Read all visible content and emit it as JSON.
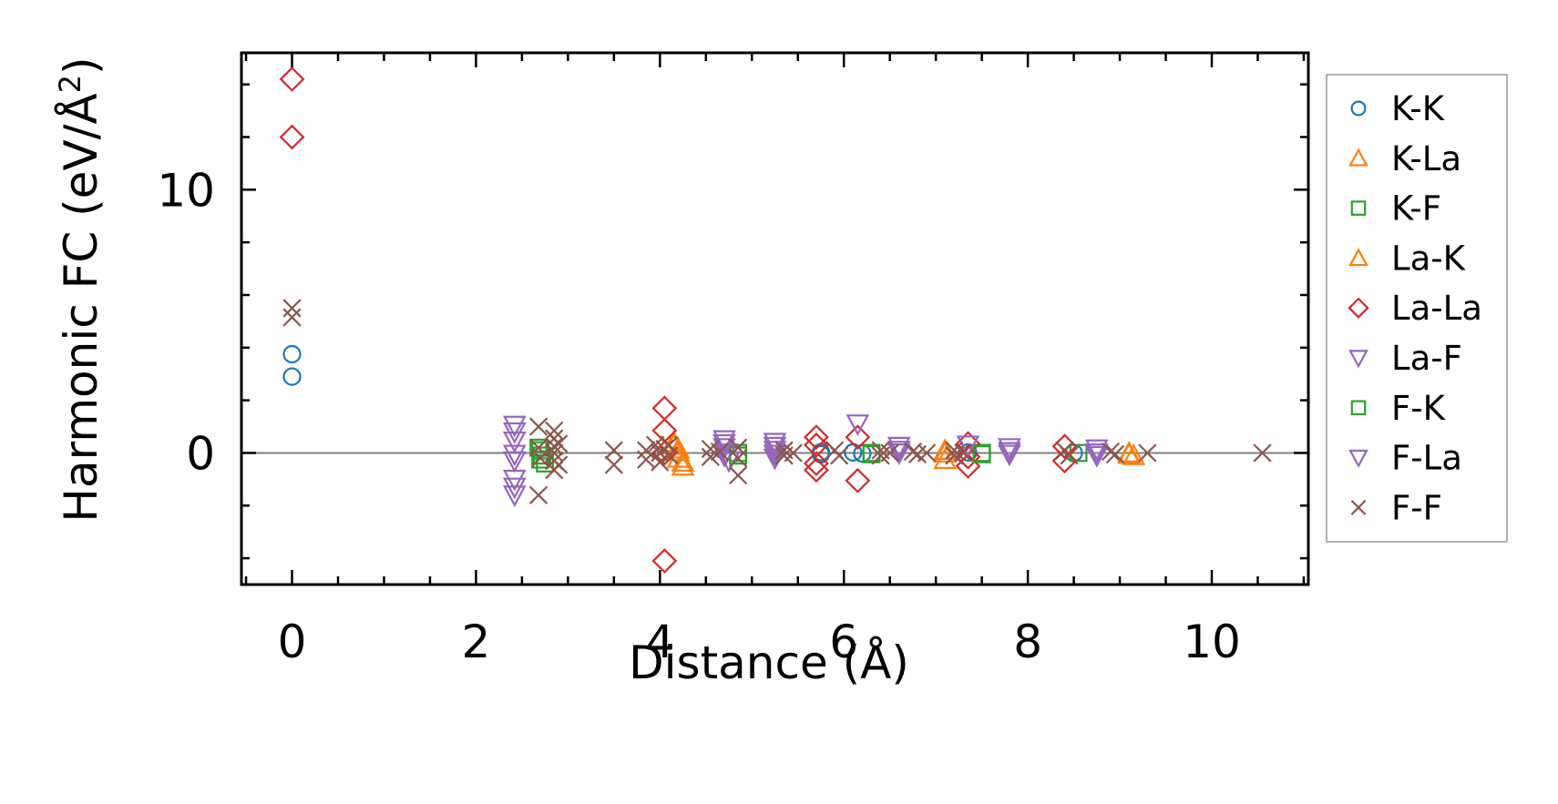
{
  "chart_data": {
    "type": "scatter",
    "xlabel": "Distance (Å)",
    "ylabel_main": "Harmonic FC (eV/Å",
    "ylabel_sup": "2",
    "ylabel_close": ")",
    "xlim": [
      -0.55,
      11.05
    ],
    "ylim": [
      -5.0,
      15.2
    ],
    "xticks": [
      0,
      2,
      4,
      6,
      8,
      10
    ],
    "xtick_labels": [
      "0",
      "2",
      "4",
      "6",
      "8",
      "10"
    ],
    "xminor_step": 0.5,
    "yticks": [
      0,
      10
    ],
    "ytick_labels": [
      "0",
      "10"
    ],
    "yminor_step": 2,
    "zero_line": true,
    "grid": false,
    "legend_position": "outside-right",
    "series": [
      {
        "name": "K-K",
        "marker": "circle",
        "color": "#1f77b4",
        "points": [
          [
            0,
            3.75
          ],
          [
            0,
            2.9
          ],
          [
            5.75,
            0.03
          ],
          [
            5.75,
            -0.05
          ],
          [
            6.1,
            0.02
          ],
          [
            6.2,
            -0.02
          ],
          [
            7.35,
            0.02
          ],
          [
            8.5,
            0.0
          ]
        ]
      },
      {
        "name": "K-La",
        "marker": "triangle-up",
        "color": "#ff7f0e",
        "points": [
          [
            4.15,
            0.4
          ],
          [
            4.2,
            0.15
          ],
          [
            4.2,
            -0.2
          ],
          [
            4.25,
            -0.5
          ],
          [
            7.1,
            0.1
          ],
          [
            7.1,
            -0.25
          ],
          [
            9.1,
            0.0
          ],
          [
            9.15,
            -0.1
          ]
        ]
      },
      {
        "name": "K-F",
        "marker": "square",
        "color": "#2ca02c",
        "points": [
          [
            2.68,
            0.2
          ],
          [
            2.72,
            -0.1
          ],
          [
            2.75,
            -0.4
          ],
          [
            4.85,
            0.0
          ],
          [
            6.3,
            0.0
          ],
          [
            7.5,
            0.0
          ],
          [
            8.55,
            0.0
          ]
        ]
      },
      {
        "name": "La-K",
        "marker": "triangle-up",
        "color": "#ff7f0e",
        "points": [
          [
            4.15,
            0.3
          ],
          [
            4.2,
            0.05
          ],
          [
            4.25,
            -0.35
          ],
          [
            7.1,
            0.0
          ],
          [
            9.1,
            -0.05
          ]
        ]
      },
      {
        "name": "La-La",
        "marker": "diamond",
        "color": "#d62728",
        "points": [
          [
            0,
            14.2
          ],
          [
            0,
            12.0
          ],
          [
            4.05,
            1.7
          ],
          [
            4.05,
            0.85
          ],
          [
            4.05,
            0.0
          ],
          [
            4.05,
            -4.1
          ],
          [
            5.7,
            0.6
          ],
          [
            5.7,
            0.3
          ],
          [
            5.7,
            -0.4
          ],
          [
            5.7,
            -0.65
          ],
          [
            6.15,
            0.6
          ],
          [
            6.15,
            -1.05
          ],
          [
            7.35,
            0.35
          ],
          [
            7.35,
            -0.15
          ],
          [
            7.35,
            -0.5
          ],
          [
            8.4,
            0.25
          ],
          [
            8.4,
            -0.3
          ]
        ]
      },
      {
        "name": "La-F",
        "marker": "triangle-down",
        "color": "#9467bd",
        "points": [
          [
            2.42,
            1.05
          ],
          [
            2.42,
            0.45
          ],
          [
            2.42,
            -0.3
          ],
          [
            2.42,
            -1.0
          ],
          [
            2.42,
            -1.6
          ],
          [
            4.7,
            0.5
          ],
          [
            4.7,
            0.2
          ],
          [
            4.7,
            -0.1
          ],
          [
            4.75,
            -0.3
          ],
          [
            5.25,
            0.4
          ],
          [
            5.25,
            0.1
          ],
          [
            5.25,
            -0.2
          ],
          [
            6.15,
            1.1
          ],
          [
            6.6,
            0.25
          ],
          [
            6.6,
            0.0
          ],
          [
            7.35,
            0.3
          ],
          [
            7.8,
            0.2
          ],
          [
            7.8,
            -0.05
          ],
          [
            8.75,
            0.15
          ],
          [
            8.75,
            -0.1
          ]
        ]
      },
      {
        "name": "F-K",
        "marker": "square",
        "color": "#2ca02c",
        "points": [
          [
            2.7,
            0.1
          ],
          [
            2.7,
            -0.25
          ],
          [
            4.85,
            -0.1
          ],
          [
            6.3,
            -0.05
          ],
          [
            7.5,
            -0.05
          ]
        ]
      },
      {
        "name": "F-La",
        "marker": "triangle-down",
        "color": "#9467bd",
        "points": [
          [
            2.42,
            0.8
          ],
          [
            2.42,
            -0.05
          ],
          [
            2.42,
            -1.3
          ],
          [
            4.7,
            0.35
          ],
          [
            4.72,
            0.0
          ],
          [
            5.25,
            0.25
          ],
          [
            5.25,
            -0.05
          ],
          [
            6.6,
            0.1
          ],
          [
            7.8,
            0.05
          ],
          [
            8.75,
            0.0
          ]
        ]
      },
      {
        "name": "F-F",
        "marker": "x",
        "color": "#8c564b",
        "points": [
          [
            0,
            5.5
          ],
          [
            0,
            5.15
          ],
          [
            2.68,
            1.0
          ],
          [
            2.68,
            -1.6
          ],
          [
            2.68,
            0.2
          ],
          [
            2.7,
            -0.2
          ],
          [
            2.85,
            0.85
          ],
          [
            2.85,
            0.55
          ],
          [
            2.85,
            0.25
          ],
          [
            2.85,
            0.0
          ],
          [
            2.85,
            -0.3
          ],
          [
            2.85,
            -0.65
          ],
          [
            2.9,
            0.35
          ],
          [
            2.9,
            -0.45
          ],
          [
            3.5,
            0.1
          ],
          [
            3.5,
            -0.45
          ],
          [
            3.85,
            0.1
          ],
          [
            3.85,
            -0.25
          ],
          [
            3.95,
            0.3
          ],
          [
            4.0,
            0.0
          ],
          [
            4.0,
            -0.35
          ],
          [
            4.05,
            0.15
          ],
          [
            4.1,
            -0.1
          ],
          [
            4.1,
            0.3
          ],
          [
            4.55,
            0.15
          ],
          [
            4.55,
            -0.15
          ],
          [
            4.65,
            0.05
          ],
          [
            4.85,
            0.2
          ],
          [
            4.85,
            -0.2
          ],
          [
            4.85,
            -0.85
          ],
          [
            5.35,
            0.1
          ],
          [
            5.35,
            -0.1
          ],
          [
            5.45,
            0.0
          ],
          [
            5.9,
            0.1
          ],
          [
            5.95,
            -0.1
          ],
          [
            6.4,
            0.1
          ],
          [
            6.4,
            -0.1
          ],
          [
            6.5,
            0.0
          ],
          [
            6.75,
            0.05
          ],
          [
            6.8,
            -0.05
          ],
          [
            6.9,
            0.0
          ],
          [
            7.2,
            0.1
          ],
          [
            7.2,
            -0.1
          ],
          [
            7.3,
            0.0
          ],
          [
            8.4,
            0.1
          ],
          [
            8.45,
            -0.1
          ],
          [
            8.9,
            0.05
          ],
          [
            8.95,
            -0.05
          ],
          [
            9.3,
            0.0
          ],
          [
            10.55,
            0.0
          ]
        ]
      }
    ]
  }
}
